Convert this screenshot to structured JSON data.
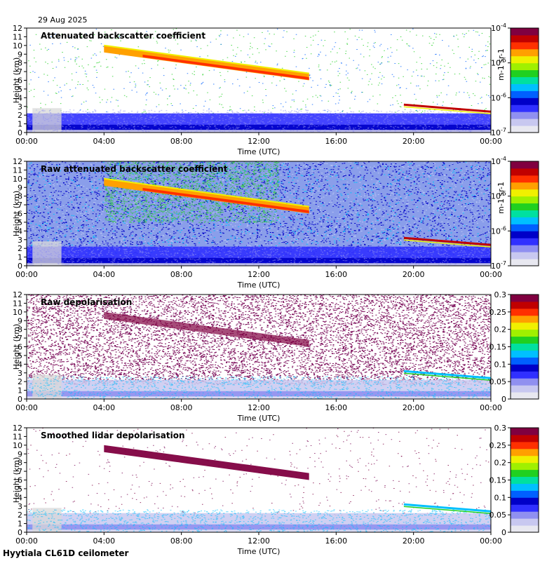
{
  "date": "29 Aug 2025",
  "footer": "Hyytiala CL61D ceilometer",
  "colors": {
    "jet": [
      "#e8e8f0",
      "#c8c8f0",
      "#9090f0",
      "#3030ff",
      "#0000c8",
      "#0060ff",
      "#00c0ff",
      "#00e0a0",
      "#20d020",
      "#a0f000",
      "#f0f000",
      "#ffa000",
      "#ff3000",
      "#c00000",
      "#800040"
    ],
    "plot_bg": "#ffffff",
    "gray_bg": "#d8d8d8",
    "noise_purple": "#7a0a58"
  },
  "chart_data": [
    {
      "type": "heatmap",
      "title": "Attenuated backscatter coefficient",
      "xlabel": "Time (UTC)",
      "ylabel": "Height (km)",
      "x_ticks": [
        "00:00",
        "04:00",
        "08:00",
        "12:00",
        "16:00",
        "20:00",
        "00:00"
      ],
      "xlim_hours": [
        0,
        24
      ],
      "ylim_km": [
        0,
        12
      ],
      "y_ticks": [
        "0",
        "1",
        "2",
        "3",
        "4",
        "5",
        "6",
        "7",
        "8",
        "9",
        "10",
        "11",
        "12"
      ],
      "colorbar": {
        "scale": "log",
        "range": [
          1e-07,
          0.0001
        ],
        "tick_labels": [
          "10-7",
          "10-6",
          "10-5",
          "10-4"
        ],
        "unit_label": "m-1 sr-1"
      },
      "mode": "backscatter",
      "noise": "sparse"
    },
    {
      "type": "heatmap",
      "title": "Raw attenuated backscatter coefficient",
      "xlabel": "Time (UTC)",
      "ylabel": "Height (km)",
      "x_ticks": [
        "00:00",
        "04:00",
        "08:00",
        "12:00",
        "16:00",
        "20:00",
        "00:00"
      ],
      "xlim_hours": [
        0,
        24
      ],
      "ylim_km": [
        0,
        12
      ],
      "y_ticks": [
        "0",
        "1",
        "2",
        "3",
        "4",
        "5",
        "6",
        "7",
        "8",
        "9",
        "10",
        "11",
        "12"
      ],
      "colorbar": {
        "scale": "log",
        "range": [
          1e-07,
          0.0001
        ],
        "tick_labels": [
          "10-7",
          "10-6",
          "10-5",
          "10-4"
        ],
        "unit_label": "m-1 sr-1"
      },
      "mode": "backscatter",
      "noise": "dense"
    },
    {
      "type": "heatmap",
      "title": "Raw depolarisation",
      "xlabel": "Time (UTC)",
      "ylabel": "Height (km)",
      "x_ticks": [
        "00:00",
        "04:00",
        "08:00",
        "12:00",
        "16:00",
        "20:00",
        "00:00"
      ],
      "xlim_hours": [
        0,
        24
      ],
      "ylim_km": [
        0,
        12
      ],
      "y_ticks": [
        "0",
        "1",
        "2",
        "3",
        "4",
        "5",
        "6",
        "7",
        "8",
        "9",
        "10",
        "11",
        "12"
      ],
      "colorbar": {
        "scale": "linear",
        "range": [
          0,
          0.3
        ],
        "tick_labels": [
          "0",
          "0.05",
          "0.1",
          "0.15",
          "0.2",
          "0.25",
          "0.3"
        ],
        "unit_label": ""
      },
      "mode": "depol",
      "noise": "dense"
    },
    {
      "type": "heatmap",
      "title": "Smoothed lidar depolarisation",
      "xlabel": "Time (UTC)",
      "ylabel": "Height (km)",
      "x_ticks": [
        "00:00",
        "04:00",
        "08:00",
        "12:00",
        "16:00",
        "20:00",
        "00:00"
      ],
      "xlim_hours": [
        0,
        24
      ],
      "ylim_km": [
        0,
        12
      ],
      "y_ticks": [
        "0",
        "1",
        "2",
        "3",
        "4",
        "5",
        "6",
        "7",
        "8",
        "9",
        "10",
        "11",
        "12"
      ],
      "colorbar": {
        "scale": "linear",
        "range": [
          0,
          0.3
        ],
        "tick_labels": [
          "0",
          "0.05",
          "0.1",
          "0.15",
          "0.2",
          "0.25",
          "0.3"
        ],
        "unit_label": ""
      },
      "mode": "depol",
      "noise": "sparse"
    }
  ],
  "features": {
    "cirrus_layer": {
      "start_hour": 4.0,
      "end_hour": 14.6,
      "top_km_start": 10.0,
      "top_km_end": 6.8,
      "bottom_km_start": 9.2,
      "bottom_km_end": 6.0
    },
    "boundary_layer_top_km": 2.2,
    "evening_cloud": {
      "start_hour": 19.5,
      "end_hour": 24.0,
      "height_km_start": 3.2,
      "height_km_end": 2.4
    }
  }
}
